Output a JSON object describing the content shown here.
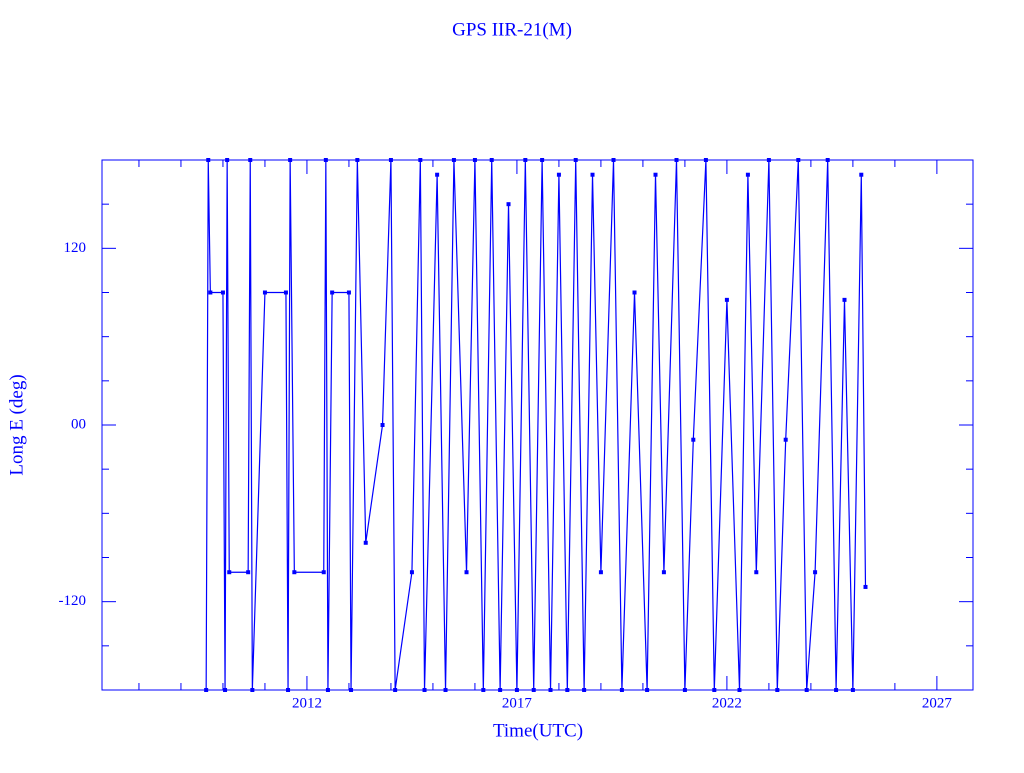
{
  "chart_data": {
    "type": "line",
    "title": "GPS IIR-21(M)",
    "x_label": "Time(UTC)",
    "y_label": "Long E (deg)",
    "color": "#0000ff",
    "xlim": [
      2007.12,
      2027.86
    ],
    "ylim": [
      -180,
      180
    ],
    "xticks": [
      2012,
      2017,
      2022,
      2027
    ],
    "yticks": [
      -120,
      {
        "value": 0,
        "label": "00"
      },
      120
    ],
    "xminorticks": [
      2008,
      2009,
      2010,
      2011,
      2013,
      2014,
      2015,
      2016,
      2018,
      2019,
      2020,
      2021,
      2023,
      2024,
      2025,
      2026
    ],
    "yminorticks": [
      -150,
      -90,
      -60,
      -30,
      30,
      60,
      90,
      150
    ],
    "x": [
      2009.6,
      2009.65,
      2009.7,
      2010.0,
      2010.05,
      2010.1,
      2010.15,
      2010.6,
      2010.65,
      2010.7,
      2011.0,
      2011.5,
      2011.55,
      2011.6,
      2011.7,
      2012.4,
      2012.45,
      2012.5,
      2012.6,
      2013.0,
      2013.05,
      2013.2,
      2013.4,
      2013.8,
      2014.0,
      2014.1,
      2014.5,
      2014.7,
      2014.8,
      2015.1,
      2015.3,
      2015.5,
      2015.8,
      2016.0,
      2016.2,
      2016.4,
      2016.6,
      2016.8,
      2017.0,
      2017.2,
      2017.4,
      2017.6,
      2017.8,
      2018.0,
      2018.2,
      2018.4,
      2018.6,
      2018.8,
      2019.0,
      2019.3,
      2019.5,
      2019.8,
      2020.1,
      2020.3,
      2020.5,
      2020.8,
      2021.0,
      2021.2,
      2021.5,
      2021.7,
      2022.0,
      2022.3,
      2022.5,
      2022.7,
      2023.0,
      2023.2,
      2023.4,
      2023.7,
      2023.9,
      2024.1,
      2024.4,
      2024.6,
      2024.8,
      2025.0,
      2025.2,
      2025.3
    ],
    "values": [
      -180,
      180,
      90,
      90,
      -180,
      180,
      -100,
      -100,
      180,
      -180,
      90,
      90,
      -180,
      180,
      -100,
      -100,
      180,
      -180,
      90,
      90,
      -180,
      180,
      -80,
      0,
      180,
      -180,
      -100,
      180,
      -180,
      170,
      -180,
      180,
      -100,
      180,
      -180,
      180,
      -180,
      150,
      -180,
      180,
      -180,
      180,
      -180,
      170,
      -180,
      180,
      -180,
      170,
      -100,
      180,
      -180,
      90,
      -180,
      170,
      -100,
      180,
      -180,
      -10,
      180,
      -180,
      85,
      -180,
      170,
      -100,
      180,
      -180,
      -10,
      180,
      -180,
      -100,
      180,
      -180,
      85,
      -180,
      170,
      -110
    ]
  }
}
